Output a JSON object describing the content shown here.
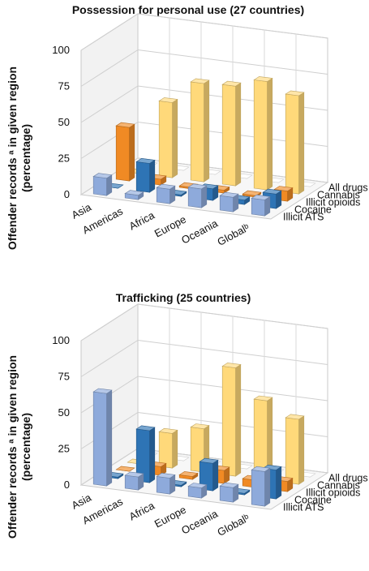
{
  "chart_data": [
    {
      "type": "bar",
      "title": "Possession for personal use (27 countries)",
      "ylabel_line1": "Offender records ᵃ in given region",
      "ylabel_line2": "(percentage)",
      "ylim": [
        0,
        100
      ],
      "yticks": [
        "0",
        "25",
        "50",
        "75",
        "100"
      ],
      "categories": [
        "Asia",
        "Americas",
        "Africa",
        "Europe",
        "Oceania",
        "Globalᵇ"
      ],
      "series": [
        {
          "name": "Illicit ATS",
          "color": "#8eaadb",
          "values": [
            12,
            3,
            10,
            13,
            10,
            11
          ]
        },
        {
          "name": "Cocaine",
          "color": "#2e74b5",
          "values": [
            0,
            20,
            1,
            8,
            3,
            10
          ]
        },
        {
          "name": "Illicit opioids",
          "color": "#f08a24",
          "values": [
            37,
            4,
            1,
            2,
            1,
            7
          ]
        },
        {
          "name": "Cannabis",
          "color": "#ffd97a",
          "values": [
            0,
            52,
            68,
            69,
            75,
            68
          ]
        },
        {
          "name": "All drugs",
          "color": "#ffffff",
          "values": [
            0,
            0,
            0,
            0,
            0,
            0
          ]
        }
      ]
    },
    {
      "type": "bar",
      "title": "Trafficking (25 countries)",
      "ylabel_line1": "Offender records ᵃ in given region",
      "ylabel_line2": "(percentage)",
      "ylim": [
        0,
        100
      ],
      "yticks": [
        "0",
        "25",
        "50",
        "75",
        "100"
      ],
      "categories": [
        "Asia",
        "Americas",
        "Africa",
        "Europe",
        "Oceania",
        "Globalᵇ"
      ],
      "series": [
        {
          "name": "Illicit ATS",
          "color": "#8eaadb",
          "values": [
            64,
            9,
            11,
            7,
            10,
            24
          ]
        },
        {
          "name": "Cocaine",
          "color": "#2e74b5",
          "values": [
            1,
            36,
            1,
            19,
            1,
            20
          ]
        },
        {
          "name": "Illicit opioids",
          "color": "#f08a24",
          "values": [
            0,
            6,
            2,
            9,
            5,
            7
          ]
        },
        {
          "name": "Cannabis",
          "color": "#ffd97a",
          "values": [
            0,
            24,
            30,
            75,
            55,
            45
          ]
        },
        {
          "name": "All drugs",
          "color": "#ffffff",
          "values": [
            0,
            0,
            0,
            0,
            0,
            0
          ]
        }
      ]
    }
  ]
}
